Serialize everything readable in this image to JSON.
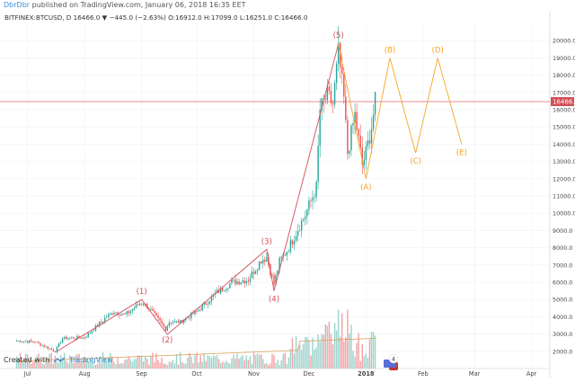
{
  "header": {
    "user": "DbrDbr",
    "published": "published on TradingView.com, January 06, 2018 16:35 EET"
  },
  "chart": {
    "symbol_line": "BITFINEX:BTCUSD, D  16466.0 ▼ −445.0 (−2.63%)  O:16912.0  H:17099.0  L:16251.0  C:16466.0",
    "price_tag": "16466.0",
    "watermark_badge": "4"
  },
  "footer": {
    "created_with": "Created with",
    "brand": "TradingView"
  },
  "colors": {
    "up": "#26a69a",
    "down": "#ef5350",
    "wave_red": "#d24d57",
    "wave_orange": "#f5a623",
    "price_line": "#d24d57",
    "volume_up": "#9ed3cc",
    "volume_down": "#f2a3a6",
    "ma_line": "#d9a15b",
    "grid": "#eef0f3"
  },
  "chart_data": {
    "type": "candlestick",
    "title": "BITFINEX:BTCUSD, D",
    "y_ticks": [
      2000,
      3000,
      4000,
      5000,
      6000,
      7000,
      8000,
      9000,
      10000,
      11000,
      12000,
      13000,
      14000,
      15000,
      16000,
      17000,
      18000,
      19000,
      20000
    ],
    "x_ticks": [
      "Jul",
      "Aug",
      "Sep",
      "Oct",
      "Nov",
      "Dec",
      "2018",
      "Feb",
      "Mar",
      "Apr"
    ],
    "ylim": [
      1000,
      21000
    ],
    "last_price": 16466.0,
    "waves_impulse": [
      {
        "label": "(1)",
        "date": "2017-09-01",
        "price": 5000
      },
      {
        "label": "(2)",
        "date": "2017-09-15",
        "price": 2975
      },
      {
        "label": "(3)",
        "date": "2017-11-08",
        "price": 7900
      },
      {
        "label": "(4)",
        "date": "2017-11-12",
        "price": 5500
      },
      {
        "label": "(5)",
        "date": "2017-12-17",
        "price": 19800
      }
    ],
    "waves_projection": [
      {
        "label": "(A)",
        "date": "2018-01-01",
        "price": 12000
      },
      {
        "label": "(B)",
        "date": "2018-01-14",
        "price": 19000
      },
      {
        "label": "(C)",
        "date": "2018-01-28",
        "price": 13500
      },
      {
        "label": "(D)",
        "date": "2018-02-09",
        "price": 19000
      },
      {
        "label": "(E)",
        "date": "2018-02-22",
        "price": 14000
      }
    ],
    "price_path": [
      [
        "2017-06-25",
        2600
      ],
      [
        "2017-07-05",
        2550
      ],
      [
        "2017-07-16",
        2000
      ],
      [
        "2017-07-20",
        2750
      ],
      [
        "2017-08-01",
        2800
      ],
      [
        "2017-08-05",
        3200
      ],
      [
        "2017-08-12",
        3900
      ],
      [
        "2017-08-17",
        4300
      ],
      [
        "2017-08-23",
        4100
      ],
      [
        "2017-09-01",
        4850
      ],
      [
        "2017-09-05",
        4500
      ],
      [
        "2017-09-14",
        3300
      ],
      [
        "2017-09-16",
        3700
      ],
      [
        "2017-09-22",
        3700
      ],
      [
        "2017-10-01",
        4300
      ],
      [
        "2017-10-12",
        5400
      ],
      [
        "2017-10-20",
        6000
      ],
      [
        "2017-10-29",
        6150
      ],
      [
        "2017-11-05",
        7300
      ],
      [
        "2017-11-08",
        7450
      ],
      [
        "2017-11-12",
        5900
      ],
      [
        "2017-11-15",
        7200
      ],
      [
        "2017-11-20",
        8000
      ],
      [
        "2017-11-26",
        9300
      ],
      [
        "2017-11-29",
        9900
      ],
      [
        "2017-12-05",
        11500
      ],
      [
        "2017-12-07",
        16000
      ],
      [
        "2017-12-11",
        16800
      ],
      [
        "2017-12-14",
        16300
      ],
      [
        "2017-12-17",
        19300
      ],
      [
        "2017-12-20",
        16600
      ],
      [
        "2017-12-22",
        13500
      ],
      [
        "2017-12-26",
        15700
      ],
      [
        "2017-12-30",
        12800
      ],
      [
        "2018-01-01",
        13500
      ],
      [
        "2018-01-04",
        15000
      ],
      [
        "2018-01-06",
        16466
      ]
    ]
  }
}
